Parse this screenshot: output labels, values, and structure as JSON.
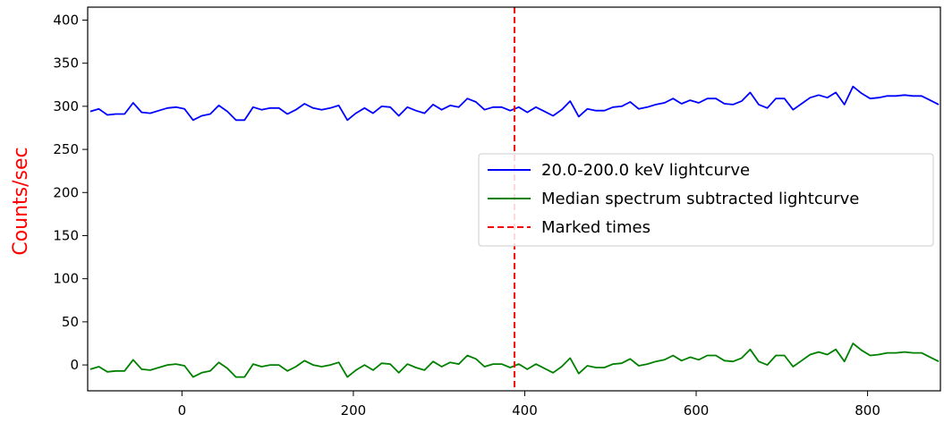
{
  "chart_data": {
    "type": "line",
    "title": "",
    "xlabel": "",
    "ylabel": "Counts/sec",
    "ylabel_color": "#ff0000",
    "xlim": [
      -110,
      885
    ],
    "ylim": [
      -30,
      415
    ],
    "xticks": [
      0,
      200,
      400,
      600,
      800
    ],
    "yticks": [
      0,
      50,
      100,
      150,
      200,
      250,
      300,
      350,
      400
    ],
    "grid": false,
    "legend_position": "center-right",
    "vline": {
      "x": 388,
      "label": "Marked times",
      "color": "#ff0000",
      "style": "dashed"
    },
    "x": [
      -107,
      -97,
      -87,
      -77,
      -67,
      -57,
      -47,
      -37,
      -27,
      -17,
      -7,
      3,
      13,
      23,
      33,
      43,
      53,
      63,
      73,
      83,
      93,
      103,
      113,
      123,
      133,
      143,
      153,
      163,
      173,
      183,
      193,
      203,
      213,
      223,
      233,
      243,
      253,
      263,
      273,
      283,
      293,
      303,
      313,
      323,
      333,
      343,
      353,
      363,
      373,
      383,
      393,
      403,
      413,
      423,
      433,
      443,
      453,
      463,
      473,
      483,
      493,
      503,
      513,
      523,
      533,
      543,
      553,
      563,
      573,
      583,
      593,
      603,
      613,
      623,
      633,
      643,
      653,
      663,
      673,
      683,
      693,
      703,
      713,
      723,
      733,
      743,
      753,
      763,
      773,
      783,
      793,
      803,
      813,
      823,
      833,
      843,
      853,
      863,
      873,
      883
    ],
    "series": [
      {
        "name": "20.0-200.0 keV lightcurve",
        "color": "#0000ff",
        "values": [
          294,
          297,
          290,
          291,
          291,
          304,
          293,
          292,
          295,
          298,
          299,
          297,
          284,
          289,
          291,
          301,
          294,
          284,
          284,
          299,
          296,
          298,
          298,
          291,
          296,
          303,
          298,
          296,
          298,
          301,
          284,
          292,
          298,
          292,
          300,
          299,
          289,
          299,
          295,
          292,
          302,
          296,
          301,
          299,
          309,
          305,
          296,
          299,
          299,
          295,
          299,
          293,
          299,
          294,
          289,
          296,
          306,
          288,
          297,
          295,
          295,
          299,
          300,
          305,
          297,
          299,
          302,
          304,
          309,
          303,
          307,
          304,
          309,
          309,
          303,
          302,
          306,
          316,
          302,
          298,
          309,
          309,
          296,
          303,
          310,
          313,
          310,
          316,
          302,
          323,
          315,
          309,
          310,
          312,
          312,
          313,
          312,
          312,
          307,
          302
        ]
      },
      {
        "name": "Median spectrum subtracted lightcurve",
        "color": "#008000",
        "values": [
          -5,
          -2,
          -8,
          -7,
          -7,
          6,
          -5,
          -6,
          -3,
          0,
          1,
          -1,
          -14,
          -9,
          -7,
          3,
          -4,
          -14,
          -14,
          1,
          -2,
          0,
          0,
          -7,
          -2,
          5,
          0,
          -2,
          0,
          3,
          -14,
          -6,
          0,
          -6,
          2,
          1,
          -9,
          1,
          -3,
          -6,
          4,
          -2,
          3,
          1,
          11,
          7,
          -2,
          1,
          1,
          -3,
          1,
          -5,
          1,
          -4,
          -9,
          -2,
          8,
          -10,
          -1,
          -3,
          -3,
          1,
          2,
          7,
          -1,
          1,
          4,
          6,
          11,
          5,
          9,
          6,
          11,
          11,
          5,
          4,
          8,
          18,
          4,
          0,
          11,
          11,
          -2,
          5,
          12,
          15,
          12,
          18,
          4,
          25,
          17,
          11,
          12,
          14,
          14,
          15,
          14,
          14,
          9,
          4
        ]
      }
    ]
  }
}
